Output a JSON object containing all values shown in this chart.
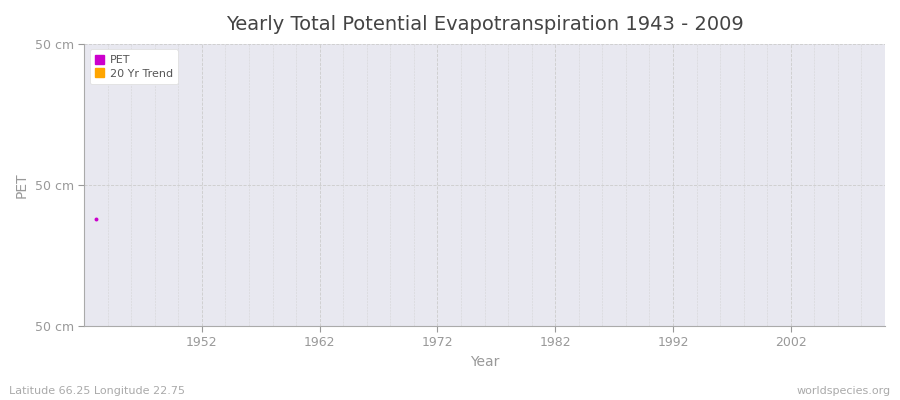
{
  "title": "Yearly Total Potential Evapotranspiration 1943 - 2009",
  "xlabel": "Year",
  "ylabel": "PET",
  "figure_bg_color": "#ffffff",
  "plot_bg_color": "#e8e8f0",
  "grid_color": "#cccccc",
  "xlim": [
    1942,
    2010
  ],
  "ylim_bottom": -50,
  "ylim_top": 50,
  "ytick_labels": [
    "50 cm",
    "50 cm",
    "50 cm"
  ],
  "ytick_positions": [
    50,
    0,
    -50
  ],
  "xticks": [
    1952,
    1962,
    1972,
    1982,
    1992,
    2002
  ],
  "pet_color": "#cc00cc",
  "trend_color": "#ffa500",
  "dot_x": 1943,
  "dot_y": -12,
  "dot_size": 8,
  "legend_labels": [
    "PET",
    "20 Yr Trend"
  ],
  "footer_left": "Latitude 66.25 Longitude 22.75",
  "footer_right": "worldspecies.org",
  "title_fontsize": 14,
  "axis_label_fontsize": 10,
  "tick_fontsize": 9,
  "footer_fontsize": 8,
  "tick_color": "#999999",
  "label_color": "#999999",
  "title_color": "#444444"
}
